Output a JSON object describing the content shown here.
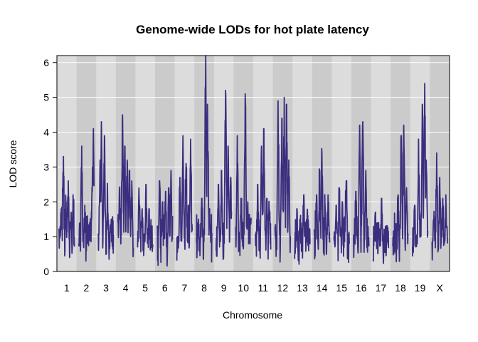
{
  "chart_data": {
    "type": "line",
    "title": "Genome-wide LODs for hot plate latency",
    "xlabel": "Chromosome",
    "ylabel": "LOD score",
    "ylim": [
      0,
      6.2
    ],
    "yticks": [
      0,
      1,
      2,
      3,
      4,
      5,
      6
    ],
    "grid": true,
    "line_color": "#3b2e7e",
    "band_colors": [
      "#dcdcdc",
      "#cbcbcb"
    ],
    "chromosomes": [
      {
        "name": "1",
        "peaks": [
          [
            0.03,
            1.2
          ],
          [
            0.15,
            1.8
          ],
          [
            0.28,
            3.3
          ],
          [
            0.45,
            2.0
          ],
          [
            0.6,
            2.6
          ],
          [
            0.78,
            1.7
          ],
          [
            0.92,
            2.2
          ]
        ]
      },
      {
        "name": "2",
        "peaks": [
          [
            0.2,
            3.6
          ],
          [
            0.4,
            1.9
          ],
          [
            0.55,
            1.5
          ],
          [
            0.72,
            1.4
          ],
          [
            0.9,
            3.0
          ],
          [
            0.96,
            4.1
          ]
        ]
      },
      {
        "name": "3",
        "peaks": [
          [
            0.12,
            3.2
          ],
          [
            0.2,
            4.3
          ],
          [
            0.4,
            3.9
          ],
          [
            0.6,
            2.2
          ],
          [
            0.85,
            1.5
          ]
        ]
      },
      {
        "name": "4",
        "peaks": [
          [
            0.1,
            2.4
          ],
          [
            0.3,
            4.5
          ],
          [
            0.45,
            3.6
          ],
          [
            0.6,
            3.2
          ],
          [
            0.75,
            2.9
          ],
          [
            0.9,
            2.6
          ]
        ]
      },
      {
        "name": "5",
        "peaks": [
          [
            0.1,
            2.1
          ],
          [
            0.3,
            1.8
          ],
          [
            0.55,
            2.5
          ],
          [
            0.75,
            1.8
          ],
          [
            0.9,
            1.3
          ]
        ]
      },
      {
        "name": "6",
        "peaks": [
          [
            0.15,
            2.6
          ],
          [
            0.35,
            2.0
          ],
          [
            0.55,
            2.3
          ],
          [
            0.75,
            2.4
          ],
          [
            0.9,
            2.9
          ]
        ]
      },
      {
        "name": "7",
        "peaks": [
          [
            0.2,
            2.7
          ],
          [
            0.4,
            3.9
          ],
          [
            0.6,
            3.1
          ],
          [
            0.75,
            1.9
          ],
          [
            0.9,
            3.8
          ]
        ]
      },
      {
        "name": "8",
        "peaks": [
          [
            0.1,
            1.2
          ],
          [
            0.35,
            2.1
          ],
          [
            0.6,
            6.2
          ],
          [
            0.72,
            4.8
          ],
          [
            0.85,
            1.8
          ]
        ]
      },
      {
        "name": "9",
        "peaks": [
          [
            0.15,
            2.5
          ],
          [
            0.35,
            2.9
          ],
          [
            0.62,
            5.2
          ],
          [
            0.78,
            3.6
          ],
          [
            0.95,
            2.7
          ]
        ]
      },
      {
        "name": "10",
        "peaks": [
          [
            0.1,
            3.9
          ],
          [
            0.35,
            2.1
          ],
          [
            0.62,
            5.1
          ],
          [
            0.78,
            2.0
          ],
          [
            0.92,
            1.5
          ]
        ]
      },
      {
        "name": "11",
        "peaks": [
          [
            0.15,
            2.5
          ],
          [
            0.4,
            3.6
          ],
          [
            0.55,
            4.1
          ],
          [
            0.75,
            2.1
          ],
          [
            0.9,
            1.8
          ]
        ]
      },
      {
        "name": "12",
        "peaks": [
          [
            0.2,
            4.9
          ],
          [
            0.45,
            4.4
          ],
          [
            0.6,
            5.0
          ],
          [
            0.75,
            4.8
          ],
          [
            0.9,
            3.2
          ]
        ]
      },
      {
        "name": "13",
        "peaks": [
          [
            0.15,
            1.8
          ],
          [
            0.35,
            1.5
          ],
          [
            0.6,
            2.2
          ],
          [
            0.85,
            1.6
          ]
        ]
      },
      {
        "name": "14",
        "peaks": [
          [
            0.15,
            2.2
          ],
          [
            0.35,
            2.9
          ],
          [
            0.5,
            3.4
          ],
          [
            0.7,
            1.9
          ],
          [
            0.9,
            2.2
          ]
        ]
      },
      {
        "name": "15",
        "peaks": [
          [
            0.15,
            1.9
          ],
          [
            0.35,
            2.4
          ],
          [
            0.55,
            2.0
          ],
          [
            0.8,
            2.6
          ]
        ]
      },
      {
        "name": "16",
        "peaks": [
          [
            0.15,
            2.3
          ],
          [
            0.4,
            4.2
          ],
          [
            0.6,
            4.3
          ],
          [
            0.8,
            2.9
          ]
        ]
      },
      {
        "name": "17",
        "peaks": [
          [
            0.15,
            1.7
          ],
          [
            0.35,
            1.4
          ],
          [
            0.55,
            2.1
          ],
          [
            0.8,
            1.3
          ]
        ]
      },
      {
        "name": "18",
        "peaks": [
          [
            0.15,
            1.0
          ],
          [
            0.35,
            2.2
          ],
          [
            0.55,
            3.9
          ],
          [
            0.72,
            4.2
          ],
          [
            0.9,
            2.4
          ]
        ]
      },
      {
        "name": "19",
        "peaks": [
          [
            0.15,
            1.9
          ],
          [
            0.4,
            3.8
          ],
          [
            0.65,
            4.8
          ],
          [
            0.8,
            5.4
          ],
          [
            0.9,
            3.2
          ]
        ]
      },
      {
        "name": "X",
        "peaks": [
          [
            0.12,
            1.5
          ],
          [
            0.3,
            3.4
          ],
          [
            0.5,
            2.7
          ],
          [
            0.7,
            2.1
          ],
          [
            0.9,
            2.2
          ]
        ]
      }
    ]
  }
}
